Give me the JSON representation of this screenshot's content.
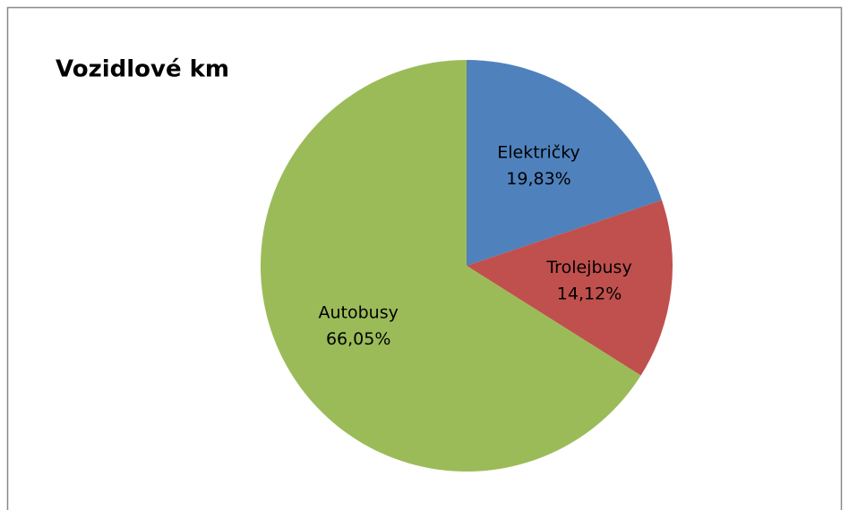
{
  "chart_data": {
    "type": "pie",
    "title": "Vozidlové km",
    "categories": [
      "Električky",
      "Trolejbusy",
      "Autobusy"
    ],
    "values": [
      19.83,
      14.12,
      66.05
    ],
    "value_labels": [
      "19,83%",
      "14,12%",
      "66,05%"
    ],
    "colors": [
      "#4f81bd",
      "#c0504d",
      "#9bbb59"
    ]
  }
}
